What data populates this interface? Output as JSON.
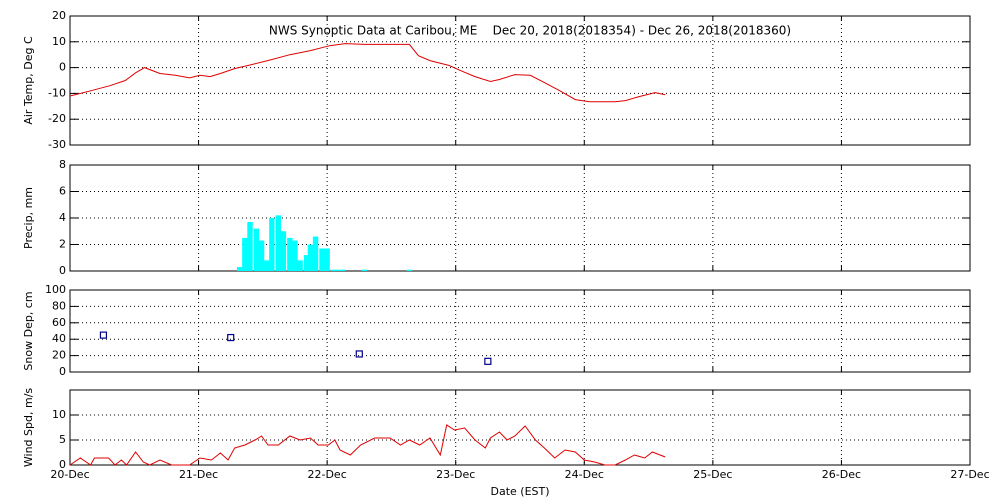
{
  "chart_data": [
    {
      "type": "line",
      "title": "NWS Synoptic Data at Caribou, ME    Dec 20, 2018(2018354) - Dec 26, 2018(2018360)",
      "ylabel": "Air Temp, Deg C",
      "color": "#e00000",
      "ylim": [
        -30,
        20
      ],
      "yticks": [
        -30,
        -20,
        -10,
        0,
        10,
        20
      ],
      "grid": true,
      "x": [
        0,
        0.16,
        0.31,
        0.43,
        0.51,
        0.58,
        0.7,
        0.82,
        0.93,
        1.01,
        1.09,
        1.17,
        1.28,
        1.4,
        1.56,
        1.71,
        1.87,
        2.02,
        2.14,
        2.29,
        2.49,
        2.64,
        2.71,
        2.8,
        2.95,
        3.03,
        3.15,
        3.27,
        3.34,
        3.46,
        3.58,
        3.69,
        3.81,
        3.93,
        4.04,
        4.24,
        4.32,
        4.43,
        4.55,
        4.63
      ],
      "values": [
        -11,
        -9,
        -7,
        -5,
        -2,
        0,
        -2.3,
        -3,
        -4,
        -3,
        -3.5,
        -2.3,
        -0.4,
        1,
        3,
        5,
        6.6,
        8.5,
        9.3,
        9,
        9,
        9,
        4.6,
        2.7,
        0.8,
        -1,
        -3.5,
        -5.4,
        -4.6,
        -2.7,
        -3,
        -5.8,
        -9,
        -12.4,
        -13.2,
        -13.2,
        -12.8,
        -11.2,
        -9.7,
        -10.5
      ]
    },
    {
      "type": "bar",
      "ylabel": "Precip, mm",
      "color": "#00ffff",
      "ylim": [
        0,
        8
      ],
      "yticks": [
        0,
        2,
        4,
        6,
        8
      ],
      "grid": true,
      "x": [
        1.32,
        1.36,
        1.4,
        1.45,
        1.49,
        1.53,
        1.57,
        1.62,
        1.66,
        1.71,
        1.75,
        1.79,
        1.84,
        1.87,
        1.91,
        1.96,
        2.0,
        2.05,
        2.08,
        2.12,
        2.29,
        2.64
      ],
      "values": [
        0.3,
        2.5,
        3.7,
        3.2,
        2.3,
        0.8,
        4.0,
        4.2,
        3.0,
        2.5,
        2.3,
        0.8,
        1.2,
        2.0,
        2.6,
        1.7,
        1.7,
        0.1,
        0.1,
        0.1,
        0.1,
        0.1
      ]
    },
    {
      "type": "scatter",
      "ylabel": "Snow Dep, cm",
      "color": "#00008b",
      "ylim": [
        0,
        100
      ],
      "yticks": [
        0,
        20,
        40,
        60,
        80,
        100
      ],
      "grid": true,
      "x": [
        0.26,
        1.25,
        2.25,
        3.25
      ],
      "values": [
        45,
        42,
        22,
        13
      ]
    },
    {
      "type": "line",
      "ylabel": "Wind Spd, m/s",
      "xlabel": "Date (EST)",
      "color": "#e00000",
      "ylim": [
        0,
        15
      ],
      "yticks": [
        0,
        5,
        10
      ],
      "grid": true,
      "xlim": [
        0,
        7
      ],
      "xticks": [
        {
          "value": 0,
          "label": "20-Dec"
        },
        {
          "value": 1,
          "label": "21-Dec"
        },
        {
          "value": 2,
          "label": "22-Dec"
        },
        {
          "value": 3,
          "label": "23-Dec"
        },
        {
          "value": 4,
          "label": "24-Dec"
        },
        {
          "value": 5,
          "label": "25-Dec"
        },
        {
          "value": 6,
          "label": "26-Dec"
        },
        {
          "value": 7,
          "label": "27-Dec"
        }
      ],
      "x": [
        0,
        0.08,
        0.16,
        0.19,
        0.3,
        0.35,
        0.4,
        0.44,
        0.51,
        0.57,
        0.62,
        0.7,
        0.79,
        0.93,
        1.01,
        1.1,
        1.17,
        1.23,
        1.28,
        1.36,
        1.44,
        1.49,
        1.54,
        1.62,
        1.71,
        1.79,
        1.87,
        1.93,
        2.01,
        2.06,
        2.1,
        2.18,
        2.26,
        2.37,
        2.49,
        2.57,
        2.64,
        2.72,
        2.8,
        2.88,
        2.93,
        2.99,
        3.07,
        3.15,
        3.23,
        3.27,
        3.34,
        3.4,
        3.46,
        3.54,
        3.62,
        3.69,
        3.77,
        3.85,
        3.93,
        4.0,
        4.08,
        4.16,
        4.24,
        4.32,
        4.39,
        4.47,
        4.53,
        4.59,
        4.63
      ],
      "values": [
        0,
        1.4,
        0,
        1.4,
        1.4,
        0,
        1,
        0,
        2.6,
        0.6,
        0,
        1,
        0,
        0,
        1.4,
        1,
        2.4,
        1,
        3.4,
        4,
        5,
        5.8,
        4,
        4,
        5.8,
        5,
        5.4,
        4,
        4,
        5,
        3,
        2,
        4,
        5.4,
        5.4,
        4,
        5,
        4,
        5.4,
        2,
        8,
        7,
        7.4,
        5,
        3.4,
        5.4,
        6.6,
        5,
        5.8,
        7.8,
        5,
        3.4,
        1.4,
        3,
        2.6,
        1,
        0.6,
        0,
        0,
        1,
        2,
        1.4,
        2.6,
        2,
        1.6
      ]
    }
  ]
}
